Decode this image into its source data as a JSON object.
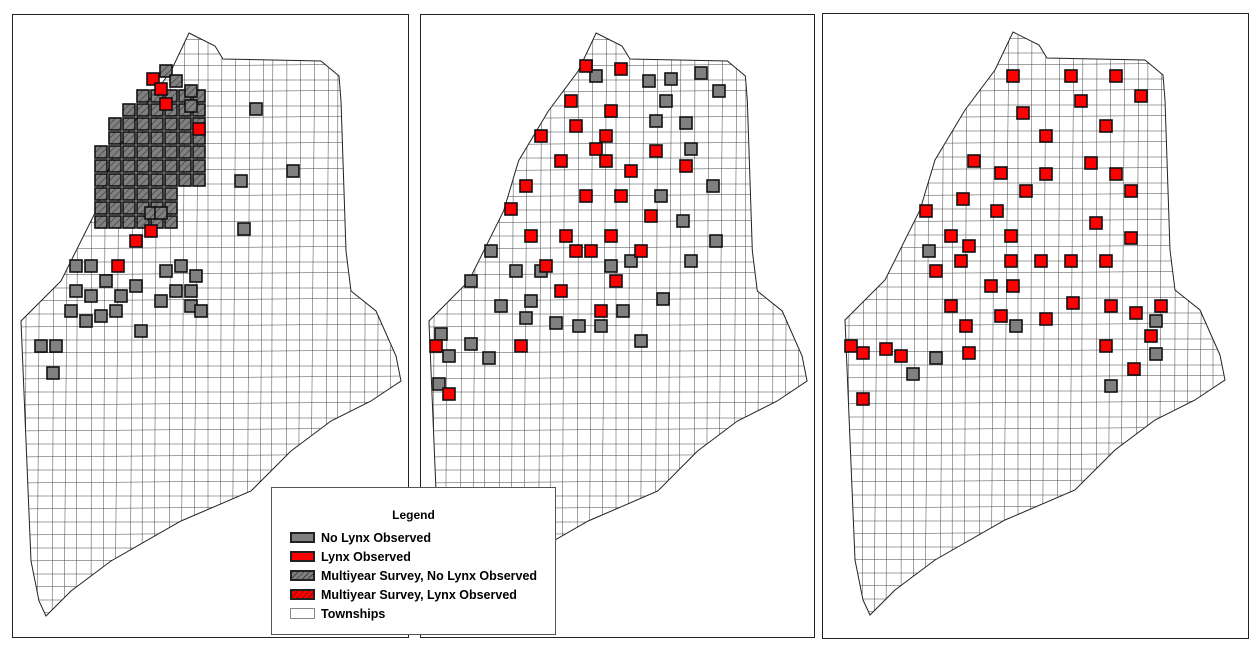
{
  "legend": {
    "title": "Legend",
    "items": [
      {
        "label": "No Lynx Observed",
        "fill": "#808080",
        "hatched": false
      },
      {
        "label": "Lynx Observed",
        "fill": "#ff0000",
        "hatched": false
      },
      {
        "label": "Multiyear Survey, No Lynx Observed",
        "fill": "#808080",
        "hatched": true
      },
      {
        "label": "Multiyear Survey, Lynx Observed",
        "fill": "#ff0000",
        "hatched": true
      },
      {
        "label": "Townships",
        "fill": "#ffffff",
        "hatched": false
      }
    ]
  },
  "colors": {
    "no_lynx": "#808080",
    "lynx": "#ff0000",
    "township_outline": "#222222"
  }
}
